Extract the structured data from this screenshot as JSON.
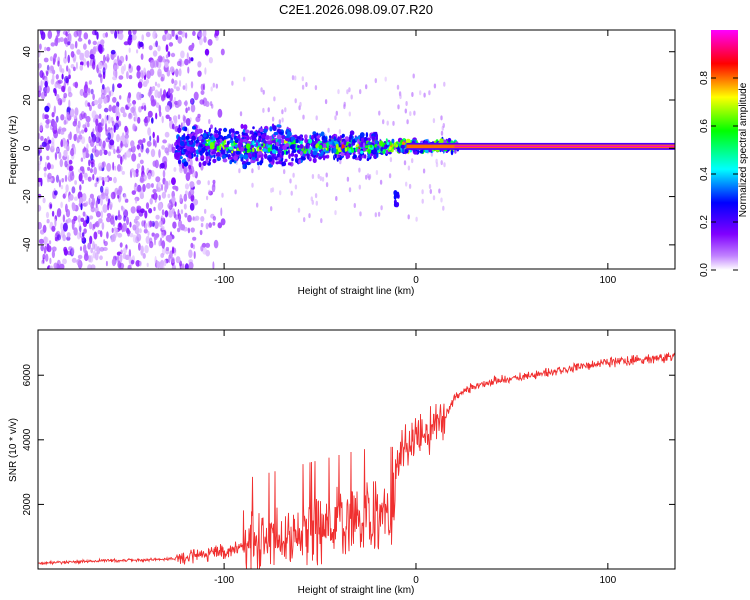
{
  "chart_data": [
    {
      "type": "heatmap",
      "title": "C2E1.2026.098.09.07.R20",
      "xlabel": "Height of straight line (km)",
      "ylabel": "Frequency (Hz)",
      "xlim": [
        -197,
        135
      ],
      "ylim": [
        -50,
        49
      ],
      "xticks": [
        -100,
        0,
        100
      ],
      "yticks": [
        -40,
        -20,
        0,
        20,
        40
      ],
      "colorbar": {
        "label": "Normalized spectral amplitude",
        "range": [
          0,
          1
        ],
        "ticks": [
          "0.0",
          "0.2",
          "0.4",
          "0.6",
          "0.8"
        ],
        "colors": [
          "#ffffff",
          "#8000ff",
          "#0000ff",
          "#00ffff",
          "#00ff00",
          "#ffff00",
          "#ff0000",
          "#ff00ff"
        ]
      },
      "description_values": {
        "noise_region_km": [
          -197,
          -110
        ],
        "carrier_frequency_hz": 0.8,
        "carrier_onset_km": 20,
        "spur_near_km": -10,
        "spur_frequency_hz": -21
      }
    },
    {
      "type": "line",
      "xlabel": "Height of straight line (km)",
      "ylabel": "SNR (10 * v/v)",
      "xlim": [
        -197,
        135
      ],
      "ylim": [
        0,
        7400
      ],
      "xticks": [
        -100,
        0,
        100
      ],
      "yticks": [
        2000,
        4000,
        6000
      ],
      "series": [
        {
          "name": "SNR",
          "color": "#f03030",
          "x": [
            -197,
            -180,
            -160,
            -140,
            -130,
            -120,
            -110,
            -100,
            -90,
            -80,
            -70,
            -60,
            -50,
            -40,
            -30,
            -20,
            -12,
            -10,
            -5,
            0,
            5,
            10,
            15,
            20,
            25,
            30,
            40,
            50,
            60,
            70,
            80,
            90,
            100,
            110,
            120,
            130,
            135
          ],
          "values": [
            180,
            220,
            260,
            280,
            300,
            360,
            450,
            520,
            700,
            850,
            1000,
            1150,
            1300,
            1450,
            1600,
            1700,
            1700,
            3400,
            3800,
            4000,
            4200,
            4400,
            4700,
            5300,
            5500,
            5650,
            5800,
            5900,
            6000,
            6100,
            6200,
            6300,
            6400,
            6450,
            6500,
            6550,
            6580
          ]
        }
      ]
    }
  ]
}
